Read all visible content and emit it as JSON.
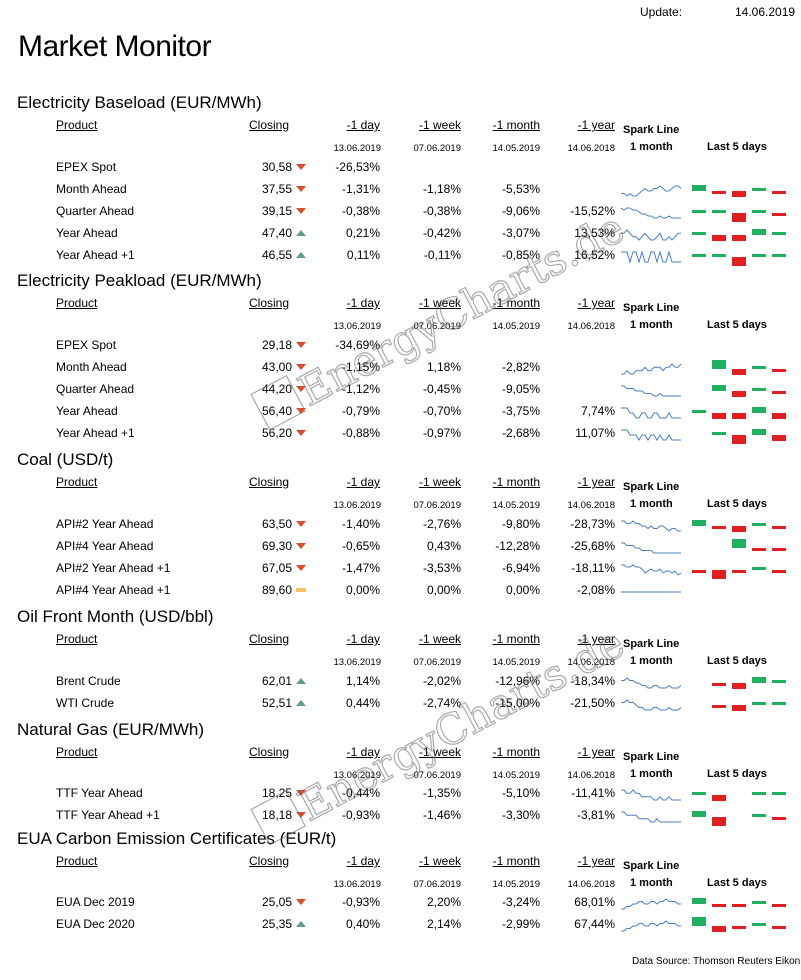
{
  "update_label": "Update:",
  "update_date": "14.06.2019",
  "title": "Market Monitor",
  "source": "Data Source: Thomson Reuters Eikon",
  "watermark": "EnergyCharts.de",
  "headers": {
    "product": "Product",
    "closing": "Closing",
    "day": "-1 day",
    "week": "-1 week",
    "month": "-1 month",
    "year": "-1 year",
    "spark1": "Spark Line",
    "spark2": "1 month",
    "last5": "Last 5  days"
  },
  "colors": {
    "down": "#d6502f",
    "up": "#5fa080",
    "flat": "#f5c26b",
    "bar_up": "#1fb060",
    "bar_down": "#e02020",
    "spark": "#4a7fc1"
  },
  "sections": [
    {
      "title": "Electricity Baseload (EUR/MWh)",
      "dates": [
        "13.06.2019",
        "07.06.2019",
        "14.05.2019",
        "14.06.2018"
      ],
      "rows": [
        {
          "product": "EPEX Spot",
          "closing": "30,58",
          "trend": "down",
          "day": "-26,53%",
          "week": "",
          "month": "",
          "year": "",
          "spark": null,
          "last5": []
        },
        {
          "product": "Month Ahead",
          "closing": "37,55",
          "trend": "down",
          "day": "-1,31%",
          "week": "-1,18%",
          "month": "-5,53%",
          "year": "",
          "spark": [
            5,
            5,
            4,
            5,
            4,
            4,
            5,
            6,
            7,
            6,
            6,
            7,
            7,
            8,
            7,
            6,
            6,
            7,
            8,
            8,
            7
          ],
          "last5": [
            2,
            -1,
            -2,
            1,
            -1
          ]
        },
        {
          "product": "Quarter Ahead",
          "closing": "39,15",
          "trend": "down",
          "day": "-0,38%",
          "week": "-0,38%",
          "month": "-9,06%",
          "year": "-15,52%",
          "spark": [
            8,
            7,
            8,
            8,
            7,
            7,
            6,
            5,
            5,
            4,
            4,
            3,
            3,
            4,
            3,
            3,
            4,
            3,
            3,
            3,
            3
          ],
          "last5": [
            1,
            1,
            -3,
            1,
            -1
          ]
        },
        {
          "product": "Year Ahead",
          "closing": "47,40",
          "trend": "up",
          "day": "0,21%",
          "week": "-0,42%",
          "month": "-3,07%",
          "year": "13,53%",
          "spark": [
            6,
            6,
            7,
            6,
            5,
            5,
            4,
            5,
            6,
            5,
            4,
            4,
            5,
            6,
            4,
            4,
            5,
            4,
            5,
            6,
            6
          ],
          "last5": [
            1,
            -2,
            -2,
            2,
            1
          ]
        },
        {
          "product": "Year  Ahead +1",
          "closing": "46,55",
          "trend": "up",
          "day": "0,11%",
          "week": "-0,11%",
          "month": "-0,85%",
          "year": "16,52%",
          "spark": [
            6,
            6,
            6,
            5,
            6,
            6,
            5,
            6,
            5,
            5,
            6,
            6,
            5,
            6,
            5,
            5,
            6,
            5,
            5,
            5,
            5
          ],
          "last5": [
            1,
            1,
            -3,
            1,
            1
          ]
        }
      ]
    },
    {
      "title": "Electricity Peakload (EUR/MWh)",
      "dates": [
        "13.06.2019",
        "07.06.2019",
        "14.05.2019",
        "14.06.2018"
      ],
      "rows": [
        {
          "product": "EPEX Spot",
          "closing": "29,18",
          "trend": "down",
          "day": "-34,69%",
          "week": "",
          "month": "",
          "year": "",
          "spark": null,
          "last5": []
        },
        {
          "product": "Month Ahead",
          "closing": "43,00",
          "trend": "down",
          "day": "-1,15%",
          "week": "1,18%",
          "month": "-2,82%",
          "year": "",
          "spark": [
            4,
            4,
            5,
            4,
            4,
            5,
            5,
            5,
            6,
            5,
            5,
            6,
            6,
            6,
            5,
            6,
            6,
            7,
            6,
            6,
            7
          ],
          "last5": [
            0,
            3,
            -2,
            1,
            -1
          ]
        },
        {
          "product": "Quarter Ahead",
          "closing": "44,20",
          "trend": "down",
          "day": "-1,12%",
          "week": "-0,45%",
          "month": "-9,05%",
          "year": "",
          "spark": [
            7,
            7,
            6,
            6,
            6,
            5,
            5,
            5,
            4,
            4,
            4,
            3,
            3,
            4,
            3,
            3,
            3,
            3,
            3,
            3,
            3
          ],
          "last5": [
            0,
            2,
            -2,
            1,
            -1
          ]
        },
        {
          "product": "Year Ahead",
          "closing": "56,40",
          "trend": "down",
          "day": "-0,79%",
          "week": "-0,70%",
          "month": "-3,75%",
          "year": "7,74%",
          "spark": [
            6,
            6,
            6,
            5,
            5,
            4,
            4,
            5,
            5,
            4,
            4,
            5,
            5,
            4,
            4,
            4,
            5,
            4,
            4,
            4,
            4
          ],
          "last5": [
            1,
            -2,
            -2,
            2,
            -2
          ]
        },
        {
          "product": "Year  Ahead +1",
          "closing": "56,20",
          "trend": "down",
          "day": "-0,88%",
          "week": "-0,97%",
          "month": "-2,68%",
          "year": "11,07%",
          "spark": [
            6,
            6,
            6,
            5,
            5,
            5,
            4,
            5,
            5,
            4,
            5,
            5,
            4,
            5,
            4,
            4,
            5,
            4,
            4,
            4,
            4
          ],
          "last5": [
            0,
            1,
            -3,
            2,
            -2
          ]
        }
      ]
    },
    {
      "title": "Coal (USD/t)",
      "dates": [
        "13.06.2019",
        "07.06.2019",
        "14.05.2019",
        "14.06.2018"
      ],
      "rows": [
        {
          "product": "API#2 Year Ahead",
          "closing": "63,50",
          "trend": "down",
          "day": "-1,40%",
          "week": "-2,76%",
          "month": "-9,80%",
          "year": "-28,73%",
          "spark": [
            8,
            8,
            7,
            7,
            8,
            7,
            7,
            6,
            6,
            5,
            6,
            5,
            5,
            6,
            6,
            5,
            4,
            5,
            5,
            4,
            4
          ],
          "last5": [
            2,
            -1,
            -2,
            1,
            -1
          ]
        },
        {
          "product": "API#4 Year Ahead",
          "closing": "69,30",
          "trend": "down",
          "day": "-0,65%",
          "week": "0,43%",
          "month": "-12,28%",
          "year": "-25,68%",
          "spark": [
            8,
            8,
            7,
            7,
            7,
            6,
            6,
            5,
            5,
            5,
            5,
            4,
            4,
            4,
            4,
            4,
            4,
            4,
            4,
            4,
            4
          ],
          "last5": [
            0,
            0,
            3,
            -1,
            -1
          ]
        },
        {
          "product": "API#2 Year Ahead +1",
          "closing": "67,05",
          "trend": "down",
          "day": "-1,47%",
          "week": "-3,53%",
          "month": "-6,94%",
          "year": "-18,11%",
          "spark": [
            8,
            8,
            7,
            7,
            8,
            7,
            7,
            6,
            4,
            5,
            6,
            5,
            5,
            6,
            4,
            5,
            5,
            4,
            5,
            3,
            4
          ],
          "last5": [
            -1,
            -3,
            -1,
            1,
            -1
          ]
        },
        {
          "product": "API#4 Year Ahead +1",
          "closing": "89,60",
          "trend": "flat",
          "day": "0,00%",
          "week": "0,00%",
          "month": "0,00%",
          "year": "-2,08%",
          "spark": [
            5,
            5,
            5,
            5,
            5,
            5,
            5,
            5,
            5,
            5,
            5,
            5,
            5,
            5,
            5,
            5,
            5,
            5,
            5,
            5,
            5
          ],
          "last5": []
        }
      ]
    },
    {
      "title": "Oil Front Month (USD/bbl)",
      "dates": [
        "13.06.2019",
        "07.06.2019",
        "14.05.2019",
        "14.06.2018"
      ],
      "rows": [
        {
          "product": "Brent Crude",
          "closing": "62,01",
          "trend": "up",
          "day": "1,14%",
          "week": "-2,02%",
          "month": "-12,96%",
          "year": "-18,34%",
          "spark": [
            7,
            7,
            8,
            7,
            7,
            6,
            6,
            5,
            5,
            4,
            4,
            5,
            5,
            4,
            4,
            4,
            5,
            4,
            4,
            4,
            5
          ],
          "last5": [
            0,
            -1,
            -2,
            2,
            1
          ]
        },
        {
          "product": "WTI Crude",
          "closing": "52,51",
          "trend": "up",
          "day": "0,44%",
          "week": "-2,74%",
          "month": "-15,00%",
          "year": "-21,50%",
          "spark": [
            7,
            7,
            8,
            7,
            7,
            6,
            5,
            5,
            4,
            4,
            4,
            5,
            5,
            4,
            4,
            4,
            5,
            4,
            4,
            4,
            5
          ],
          "last5": [
            0,
            -1,
            -2,
            1,
            1
          ]
        }
      ]
    },
    {
      "title": "Natural Gas (EUR/MWh)",
      "dates": [
        "13.06.2019",
        "07.06.2019",
        "14.05.2019",
        "14.06.2018"
      ],
      "rows": [
        {
          "product": "TTF Year Ahead",
          "closing": "18,25",
          "trend": "down",
          "day": "-0,44%",
          "week": "-1,35%",
          "month": "-5,10%",
          "year": "-11,41%",
          "spark": [
            7,
            7,
            6,
            6,
            7,
            6,
            6,
            5,
            5,
            5,
            5,
            4,
            4,
            5,
            4,
            4,
            5,
            4,
            4,
            4,
            4
          ],
          "last5": [
            1,
            -2,
            0,
            1,
            1
          ]
        },
        {
          "product": "TTF Year Ahead +1",
          "closing": "18,18",
          "trend": "down",
          "day": "-0,93%",
          "week": "-1,46%",
          "month": "-3,30%",
          "year": "-3,81%",
          "spark": [
            7,
            7,
            6,
            6,
            6,
            6,
            5,
            5,
            5,
            5,
            4,
            4,
            5,
            4,
            4,
            4,
            4,
            4,
            4,
            4,
            4
          ],
          "last5": [
            2,
            -3,
            0,
            1,
            -1
          ]
        }
      ]
    },
    {
      "title": "EUA Carbon Emission Certificates (EUR/t)",
      "dates": [
        "13.06.2019",
        "07.06.2019",
        "14.05.2019",
        "14.06.2018"
      ],
      "rows": [
        {
          "product": "EUA Dec 2019",
          "closing": "25,05",
          "trend": "down",
          "day": "-0,93%",
          "week": "2,20%",
          "month": "-3,24%",
          "year": "68,01%",
          "spark": [
            4,
            4,
            5,
            5,
            6,
            6,
            7,
            7,
            6,
            6,
            7,
            7,
            6,
            7,
            7,
            8,
            7,
            7,
            7,
            6,
            6
          ],
          "last5": [
            2,
            -1,
            -1,
            1,
            -1
          ]
        },
        {
          "product": "EUA Dec 2020",
          "closing": "25,35",
          "trend": "up",
          "day": "0,40%",
          "week": "2,14%",
          "month": "-2,99%",
          "year": "67,44%",
          "spark": [
            4,
            4,
            5,
            5,
            6,
            6,
            7,
            7,
            6,
            6,
            7,
            7,
            6,
            7,
            7,
            8,
            7,
            7,
            7,
            6,
            6
          ],
          "last5": [
            3,
            -2,
            -1,
            1,
            -1
          ]
        }
      ]
    }
  ]
}
